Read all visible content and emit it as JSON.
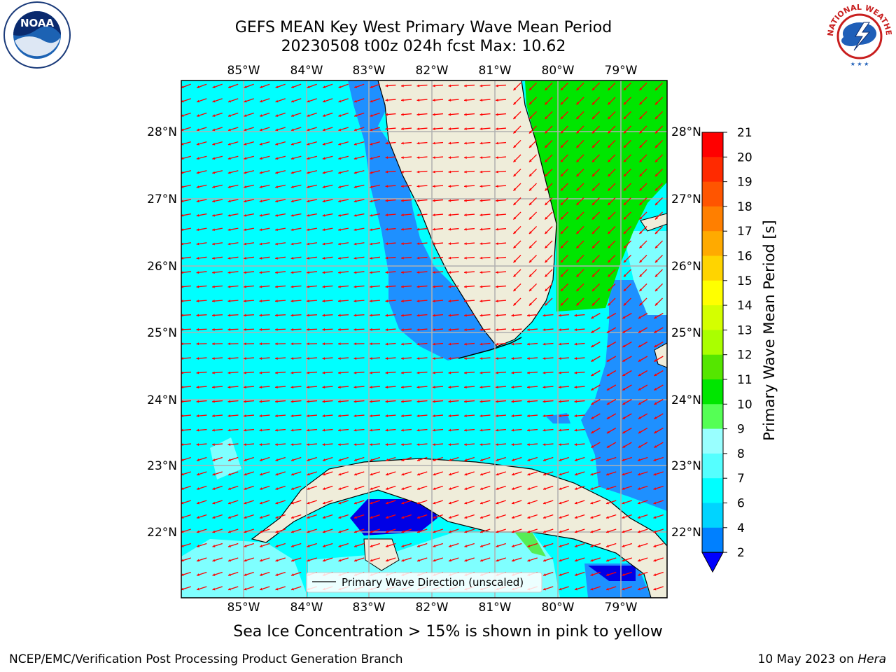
{
  "title": {
    "line1": "GEFS MEAN Key West Primary Wave Mean Period",
    "line2": "20230508 t00z 024h fcst   Max: 10.62"
  },
  "map": {
    "lon_ticks": [
      "85°W",
      "84°W",
      "83°W",
      "82°W",
      "81°W",
      "80°W",
      "79°W"
    ],
    "lat_ticks": [
      "28°N",
      "27°N",
      "26°N",
      "25°N",
      "24°N",
      "23°N",
      "22°N"
    ],
    "legend_label": "Primary Wave Direction (unscaled)",
    "arrow_color": "#ff0000"
  },
  "colorbar": {
    "label": "Primary Wave Mean Period [s]",
    "ticks": [
      "21",
      "20",
      "19",
      "18",
      "17",
      "16",
      "15",
      "14",
      "13",
      "12",
      "11",
      "10",
      "9",
      "8",
      "7",
      "6",
      "4",
      "2"
    ],
    "colors": [
      "#ff0000",
      "#ff2a00",
      "#ff5500",
      "#ff7f00",
      "#ffaa00",
      "#ffd400",
      "#ffff00",
      "#d4ff00",
      "#aaff00",
      "#55e600",
      "#00e600",
      "#55ff55",
      "#99ffff",
      "#55ffff",
      "#00ffff",
      "#00d4ff",
      "#0080ff",
      "#0000ff"
    ]
  },
  "ice_note": "Sea Ice Concentration > 15% is shown in pink to yellow",
  "footer": {
    "left": "NCEP/EMC/Verification Post Processing Product Generation Branch",
    "right_date": "10 May 2023 on ",
    "right_host": "Hera"
  },
  "logos": {
    "noaa": "NOAA",
    "nws": "NATIONAL WEATHER SERVICE"
  }
}
